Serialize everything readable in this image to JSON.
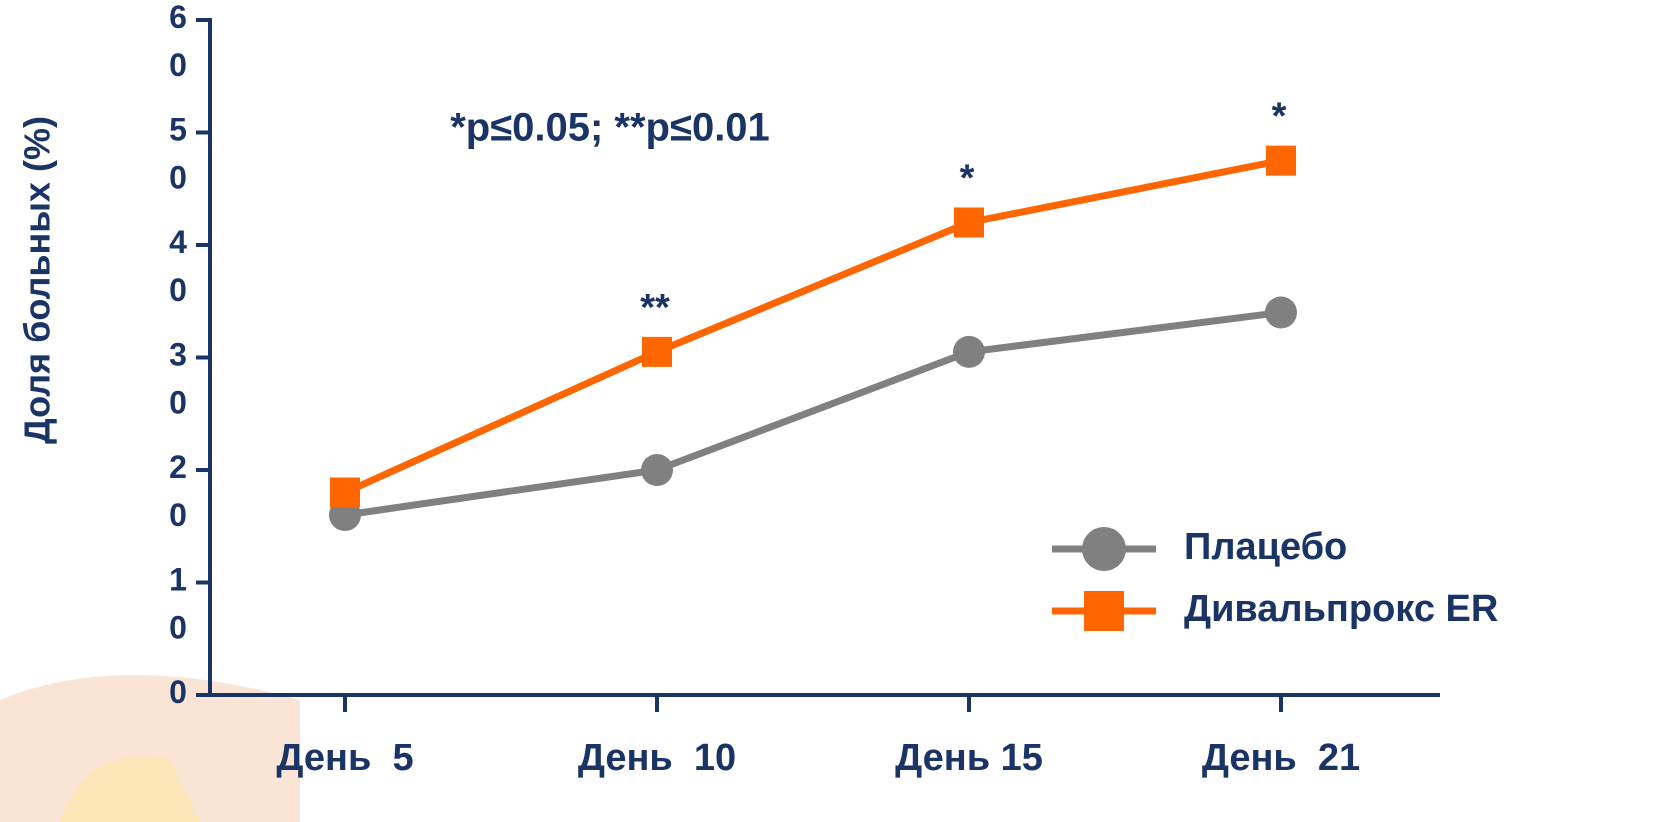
{
  "chart_data": {
    "type": "line",
    "y_label": "Доля больных (%)",
    "note": "*p≤0.05; **p≤0.01",
    "categories": [
      "День  5",
      "День  10",
      "День 15",
      "День  21"
    ],
    "series": [
      {
        "name": "Плацебо",
        "color": "#808080",
        "marker": "circle",
        "values": [
          16,
          20,
          30.5,
          34
        ]
      },
      {
        "name": "Дивальпрокс ER",
        "color": "#ff6600",
        "marker": "square",
        "values": [
          18,
          30.5,
          42,
          47.5
        ]
      }
    ],
    "significance": [
      null,
      "**",
      "*",
      "*"
    ],
    "ylim": [
      0,
      60
    ],
    "yticks": [
      0,
      10,
      20,
      30,
      40,
      50,
      60
    ]
  }
}
